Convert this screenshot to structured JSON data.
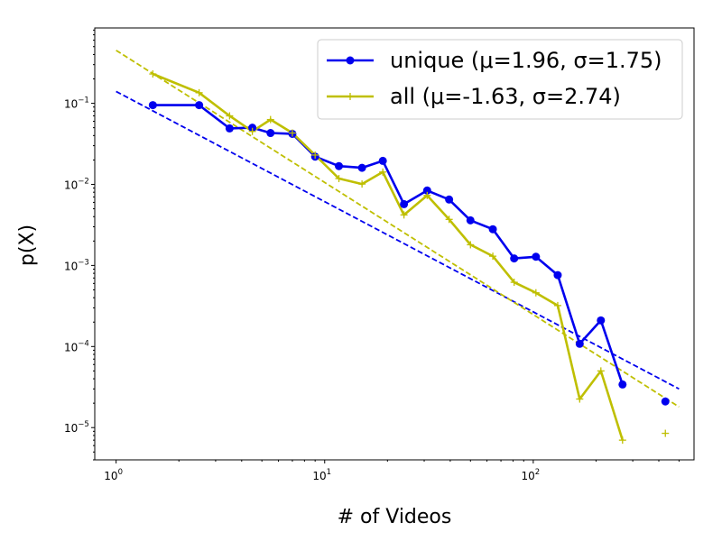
{
  "chart_data": {
    "type": "line",
    "title": "",
    "xlabel": "# of Videos",
    "ylabel": "p(X)",
    "xscale": "log",
    "yscale": "log",
    "xlim": [
      0.79,
      590
    ],
    "ylim": [
      4e-06,
      0.85
    ],
    "x_ticks": [
      {
        "base": "10",
        "exp": "0",
        "value": 1
      },
      {
        "base": "10",
        "exp": "1",
        "value": 10
      },
      {
        "base": "10",
        "exp": "2",
        "value": 100
      }
    ],
    "y_ticks": [
      {
        "base": "10",
        "exp": "−1",
        "value": 0.1
      },
      {
        "base": "10",
        "exp": "−2",
        "value": 0.01
      },
      {
        "base": "10",
        "exp": "−3",
        "value": 0.001
      },
      {
        "base": "10",
        "exp": "−4",
        "value": 0.0001
      },
      {
        "base": "10",
        "exp": "−5",
        "value": 1e-05
      }
    ],
    "grid": false,
    "legend_position": "top-right",
    "series": [
      {
        "name": "unique (μ=1.96, σ=1.75)",
        "color": "#0000ee",
        "marker": "circle",
        "x": [
          1.5,
          2.5,
          3.5,
          4.5,
          5.5,
          7,
          9,
          11.7,
          15.1,
          19,
          24,
          31,
          39.5,
          50,
          64,
          81,
          103,
          131,
          167,
          211,
          268,
          430
        ],
        "y": [
          0.095,
          0.095,
          0.049,
          0.05,
          0.043,
          0.042,
          0.022,
          0.0168,
          0.016,
          0.0195,
          0.0057,
          0.0084,
          0.0065,
          0.0036,
          0.0028,
          0.00122,
          0.00128,
          0.00076,
          0.000108,
          0.00021,
          3.4e-05,
          2.1e-05
        ],
        "line_points": 21,
        "fit": {
          "x": [
            1,
            500
          ],
          "y": [
            0.14,
            3e-05
          ]
        }
      },
      {
        "name": "all (μ=-1.63, σ=2.74)",
        "color": "#bfbf00",
        "marker": "plus",
        "x": [
          1.5,
          2.5,
          3.5,
          4.5,
          5.5,
          7,
          9,
          11.7,
          15.1,
          19,
          24,
          31,
          39.5,
          50,
          64,
          81,
          103,
          131,
          167,
          211,
          268,
          430
        ],
        "y": [
          0.23,
          0.135,
          0.07,
          0.045,
          0.063,
          0.043,
          0.023,
          0.0118,
          0.0101,
          0.0142,
          0.0042,
          0.0073,
          0.0037,
          0.0018,
          0.0013,
          0.00062,
          0.00046,
          0.00032,
          2.25e-05,
          5e-05,
          7e-06,
          8.5e-06
        ],
        "line_points": 21,
        "fit": {
          "x": [
            1,
            500
          ],
          "y": [
            0.45,
            1.8e-05
          ]
        }
      }
    ]
  }
}
